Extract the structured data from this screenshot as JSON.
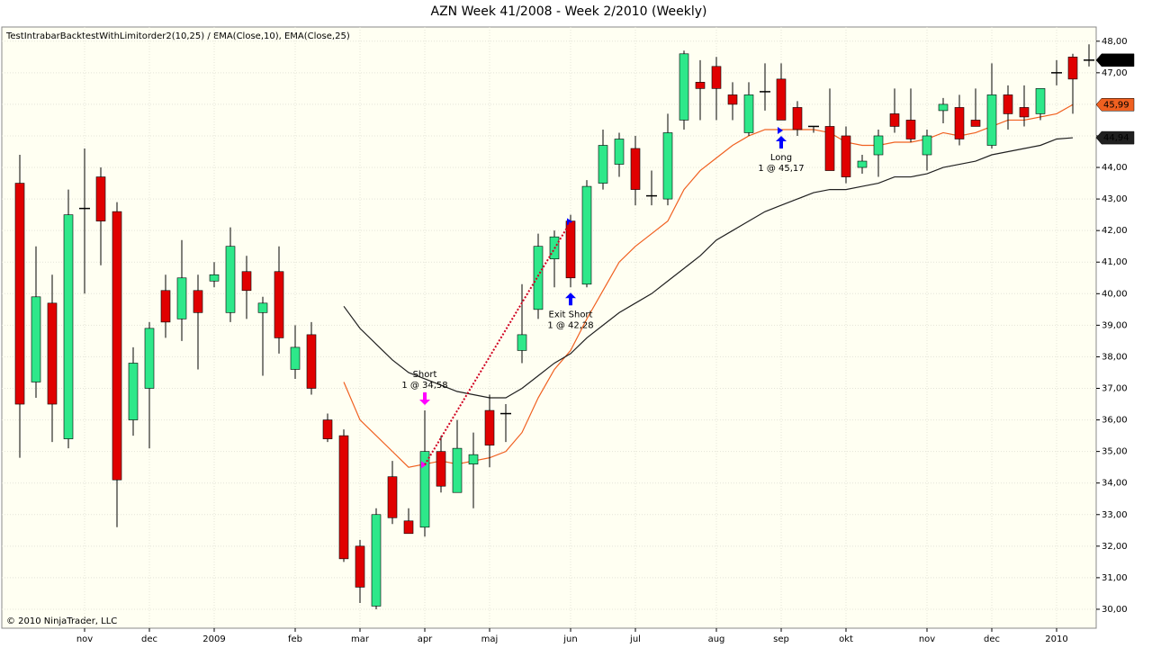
{
  "chart_data": {
    "type": "candlestick",
    "title": "AZN  Week 41/2008 - Week 2/2010 (Weekly)",
    "subtitle": "TestIntrabarBacktestWithLimitorder2(10,25) / EMA(Close,10), EMA(Close,25)",
    "copyright": "© 2010 NinjaTrader, LLC",
    "categories": [
      null,
      null,
      null,
      null,
      "nov",
      null,
      null,
      null,
      "dec",
      null,
      null,
      null,
      "2009",
      null,
      null,
      null,
      null,
      "feb",
      null,
      null,
      null,
      "mar",
      null,
      null,
      null,
      "apr",
      null,
      null,
      null,
      "maj",
      null,
      null,
      null,
      null,
      "jun",
      null,
      null,
      null,
      "jul",
      null,
      null,
      null,
      null,
      "aug",
      null,
      null,
      null,
      "sep",
      null,
      null,
      null,
      "okt",
      null,
      null,
      null,
      null,
      "nov",
      null,
      null,
      null,
      "dec",
      null,
      null,
      null,
      "2010",
      null,
      null
    ],
    "open": [
      43.5,
      37.2,
      39.7,
      35.4,
      42.7,
      43.7,
      42.6,
      36.0,
      37.0,
      40.1,
      39.2,
      40.1,
      40.4,
      39.4,
      40.7,
      39.4,
      40.7,
      37.6,
      38.7,
      36.0,
      35.5,
      32.0,
      30.1,
      34.2,
      32.8,
      32.6,
      35.0,
      33.7,
      34.6,
      36.3,
      36.2,
      38.2,
      39.5,
      41.1,
      42.3,
      40.3,
      43.5,
      44.1,
      44.6,
      43.1,
      43.0,
      45.5,
      46.7,
      47.2,
      46.3,
      45.1,
      46.4,
      46.8,
      45.9,
      45.3,
      45.3,
      45.0,
      44.0,
      44.4,
      45.7,
      45.5,
      44.4,
      45.8,
      45.9,
      45.5,
      44.7,
      46.3,
      45.9,
      45.7,
      47.0,
      47.5,
      47.4
    ],
    "high": [
      44.4,
      41.5,
      40.6,
      43.3,
      44.6,
      44.0,
      42.9,
      38.3,
      39.1,
      40.6,
      41.7,
      40.6,
      41.0,
      42.1,
      41.2,
      39.9,
      41.5,
      39.0,
      39.1,
      36.2,
      35.7,
      32.2,
      33.2,
      34.7,
      33.2,
      36.3,
      35.5,
      36.0,
      35.6,
      36.8,
      36.5,
      40.3,
      41.9,
      42.0,
      42.5,
      43.6,
      45.2,
      45.1,
      45.0,
      43.9,
      45.7,
      47.7,
      47.4,
      47.5,
      46.7,
      46.7,
      47.3,
      47.3,
      46.1,
      45.3,
      46.5,
      45.3,
      44.4,
      45.2,
      46.5,
      46.5,
      45.2,
      46.2,
      46.3,
      46.5,
      47.3,
      46.6,
      46.6,
      46.5,
      47.4,
      47.6,
      47.9
    ],
    "low": [
      34.8,
      36.7,
      35.3,
      35.1,
      40.0,
      40.9,
      32.6,
      35.5,
      35.1,
      38.6,
      38.5,
      37.6,
      40.2,
      39.1,
      39.2,
      37.4,
      38.1,
      37.3,
      36.8,
      35.3,
      31.5,
      30.2,
      30.0,
      32.7,
      32.4,
      32.3,
      33.7,
      33.7,
      33.2,
      34.5,
      35.3,
      37.8,
      39.2,
      40.2,
      40.2,
      40.2,
      43.3,
      43.7,
      42.8,
      42.8,
      42.8,
      45.2,
      45.5,
      45.5,
      45.5,
      45.0,
      45.8,
      45.5,
      45.0,
      45.1,
      43.9,
      43.5,
      43.8,
      43.7,
      45.1,
      44.8,
      43.9,
      45.4,
      44.7,
      45.3,
      44.6,
      45.2,
      45.3,
      45.5,
      46.6,
      45.7,
      47.2
    ],
    "close": [
      36.5,
      39.9,
      36.5,
      42.5,
      42.7,
      42.3,
      34.1,
      37.8,
      38.9,
      39.1,
      40.5,
      39.4,
      40.6,
      41.5,
      40.1,
      39.7,
      38.6,
      38.3,
      37.0,
      35.4,
      31.6,
      30.7,
      33.0,
      32.9,
      32.4,
      35.0,
      33.9,
      35.1,
      34.9,
      35.2,
      36.2,
      38.7,
      41.5,
      41.8,
      40.5,
      43.4,
      44.7,
      44.9,
      43.3,
      43.1,
      45.1,
      47.6,
      46.5,
      46.5,
      46.0,
      46.3,
      46.4,
      45.5,
      45.2,
      45.3,
      43.9,
      43.7,
      44.2,
      45.0,
      45.3,
      44.9,
      45.0,
      46.0,
      44.9,
      45.3,
      46.3,
      45.7,
      45.6,
      46.5,
      47.0,
      46.8,
      47.4
    ],
    "close_label": "47,40",
    "up_color": "#2ee88a",
    "down_color": "#e00000",
    "series": [
      {
        "color": "#f06020",
        "last_label": "45,99",
        "values": [
          null,
          null,
          null,
          null,
          null,
          null,
          null,
          null,
          null,
          null,
          null,
          null,
          null,
          null,
          null,
          null,
          null,
          null,
          null,
          null,
          37.2,
          36.0,
          35.5,
          35.0,
          34.5,
          34.6,
          34.7,
          34.6,
          34.7,
          34.8,
          35.0,
          35.6,
          36.7,
          37.6,
          38.2,
          39.2,
          40.1,
          41.0,
          41.5,
          41.9,
          42.3,
          43.3,
          43.9,
          44.3,
          44.7,
          45.0,
          45.2,
          45.2,
          45.2,
          45.2,
          45.1,
          44.8,
          44.7,
          44.7,
          44.8,
          44.8,
          44.9,
          45.1,
          45.0,
          45.1,
          45.3,
          45.5,
          45.5,
          45.6,
          45.7,
          45.99,
          null
        ]
      },
      {
        "color": "#202020",
        "last_label": "44,94",
        "values": [
          null,
          null,
          null,
          null,
          null,
          null,
          null,
          null,
          null,
          null,
          null,
          null,
          null,
          null,
          null,
          null,
          null,
          null,
          null,
          null,
          39.6,
          38.9,
          38.4,
          37.9,
          37.5,
          37.3,
          37.1,
          36.9,
          36.8,
          36.7,
          36.7,
          37.0,
          37.4,
          37.8,
          38.1,
          38.6,
          39.0,
          39.4,
          39.7,
          40.0,
          40.4,
          40.8,
          41.2,
          41.7,
          42.0,
          42.3,
          42.6,
          42.8,
          43.0,
          43.2,
          43.3,
          43.3,
          43.4,
          43.5,
          43.7,
          43.7,
          43.8,
          44.0,
          44.1,
          44.2,
          44.4,
          44.5,
          44.6,
          44.7,
          44.9,
          44.94,
          null
        ]
      }
    ],
    "trades": [
      {
        "label": "Short",
        "detail": "1 @ 34,58",
        "price": 34.58,
        "direction": "down",
        "color": "#ff00ff"
      },
      {
        "label": "Exit Short",
        "detail": "1 @ 42,28",
        "price": 42.28,
        "direction": "up",
        "color": "#0000ff"
      },
      {
        "label": "Long",
        "detail": "1 @ 45,17",
        "price": 45.17,
        "direction": "up",
        "color": "#0000ff"
      }
    ],
    "ylim": [
      29.4,
      48.45
    ],
    "yticks": [
      {
        "value": 30,
        "label": "30,00"
      },
      {
        "value": 31,
        "label": "31,00"
      },
      {
        "value": 32,
        "label": "32,00"
      },
      {
        "value": 33,
        "label": "33,00"
      },
      {
        "value": 34,
        "label": "34,00"
      },
      {
        "value": 35,
        "label": "35,00"
      },
      {
        "value": 36,
        "label": "36,00"
      },
      {
        "value": 37,
        "label": "37,00"
      },
      {
        "value": 38,
        "label": "38,00"
      },
      {
        "value": 39,
        "label": "39,00"
      },
      {
        "value": 40,
        "label": "40,00"
      },
      {
        "value": 41,
        "label": "41,00"
      },
      {
        "value": 42,
        "label": "42,00"
      },
      {
        "value": 43,
        "label": "43,00"
      },
      {
        "value": 44,
        "label": "44,00"
      },
      {
        "value": 45,
        "label": "45,00"
      },
      {
        "value": 46,
        "label": "46,00"
      },
      {
        "value": 47,
        "label": "47,00"
      },
      {
        "value": 48,
        "label": "48,00"
      }
    ],
    "grid": true,
    "background": "#fffff2"
  }
}
